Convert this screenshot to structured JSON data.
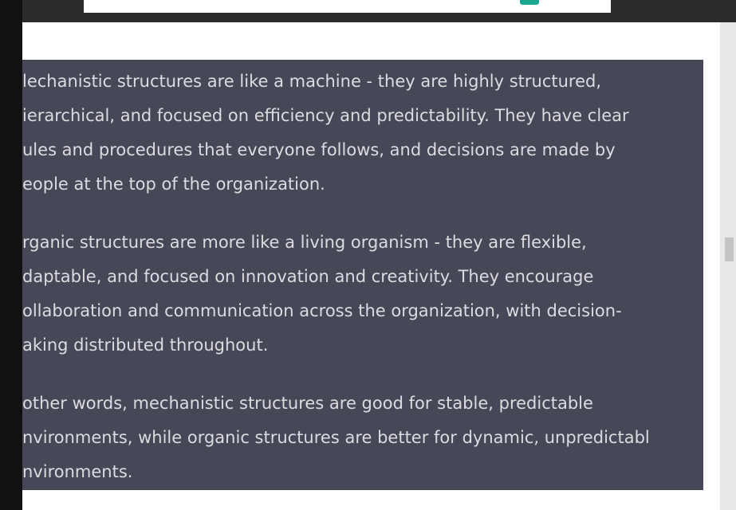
{
  "paragraphs": [
    [
      "lechanistic structures are like a machine - they are highly structured,",
      "ierarchical, and focused on efficiency and predictability. They have clear",
      "ules and procedures that everyone follows, and decisions are made by",
      "eople at the top of the organization."
    ],
    [
      "rganic structures are more like a living organism - they are flexible,",
      "daptable, and focused on innovation and creativity. They encourage",
      "ollaboration and communication across the organization, with decision-",
      "aking distributed throughout."
    ],
    [
      "other words, mechanistic structures are good for stable, predictable",
      "nvironments, while organic structures are better for dynamic, unpredictabl",
      "nvironments."
    ]
  ]
}
